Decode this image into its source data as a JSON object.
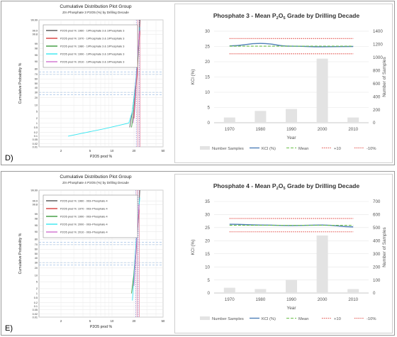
{
  "panels": [
    {
      "letter": "D)",
      "cdf": {
        "title": "Cumulative Distribution Plot Group",
        "subtitle": "Zm Phosphate 3 P2O5 (%) by Drilling Decade",
        "xlabel": "P2O5 prod %",
        "ylabel": "Cumulative Probability %",
        "xticks": [
          "2",
          "5",
          "10",
          "20",
          "50"
        ],
        "yticks": [
          "99.99",
          "99.9",
          "99.8",
          "99",
          "98",
          "95",
          "90",
          "80",
          "70",
          "60",
          "50",
          "40",
          "30",
          "20",
          "10",
          "5",
          "2",
          "1",
          "0.5",
          "0.2",
          "0.1",
          "0.05",
          "0.02",
          "0.01"
        ],
        "legend": [
          {
            "label": "P2O5 prod %: 1960 - 1\\Phosphate 3 & 1\\Phosphate 3",
            "color": "#555555"
          },
          {
            "label": "P2O5 prod %: 1970 - 1\\Phosphate 3 & 1\\Phosphate 3",
            "color": "#d73b3b"
          },
          {
            "label": "P2O5 prod %: 1980 - 1\\Phosphate 3 & 1\\Phosphate 3",
            "color": "#3c9a3c"
          },
          {
            "label": "P2O5 prod %: 1990 - 1\\Phosphate 3 & 1\\Phosphate 3",
            "color": "#37e6f0"
          },
          {
            "label": "P2O5 prod %: 2010 - 1\\Phosphate 3 & 1\\Phosphate 3",
            "color": "#d070d0"
          }
        ]
      },
      "chart_data": {
        "type": "bar",
        "title": "Phosphate 3 - Mean P2O5 Grade by Drilling Decade",
        "xlabel": "Year",
        "ylabel": "KCl (%)",
        "y2label": "Number of Samples",
        "categories": [
          "1970",
          "1980",
          "1990",
          "2000",
          "2010"
        ],
        "ylim": [
          0,
          30
        ],
        "y2lim": [
          0,
          1400
        ],
        "yticks": [
          "0",
          "5",
          "10",
          "15",
          "20",
          "25",
          "30"
        ],
        "y2ticks": [
          "0",
          "200",
          "400",
          "600",
          "800",
          "1000",
          "1200",
          "1400"
        ],
        "series": [
          {
            "name": "Number Samples",
            "type": "bar",
            "axis": "y2",
            "values": [
              80,
              180,
              210,
              980,
              80
            ],
            "color": "#e3e3e3"
          },
          {
            "name": "KCl (%)",
            "type": "line",
            "axis": "y",
            "values": [
              25.2,
              26.0,
              25.1,
              24.9,
              25.0
            ],
            "color": "#4f7fb8"
          },
          {
            "name": "Mean",
            "type": "line",
            "axis": "y",
            "values": [
              25.1,
              25.1,
              25.1,
              25.1,
              25.1
            ],
            "color": "#6abf4b"
          },
          {
            "name": "+10",
            "type": "line",
            "axis": "y",
            "values": [
              27.6,
              27.6,
              27.6,
              27.6,
              27.6
            ],
            "color": "#e0433c"
          },
          {
            "name": "-10%",
            "type": "line",
            "axis": "y",
            "values": [
              22.6,
              22.6,
              22.6,
              22.6,
              22.6
            ],
            "color": "#e0433c"
          }
        ]
      }
    },
    {
      "letter": "E)",
      "cdf": {
        "title": "Cumulative Distribution Plot Group",
        "subtitle": "Zm Phosphate 4 P2O5 (%) by Drilling Decade",
        "xlabel": "P2O5 prod %",
        "ylabel": "Cumulative Probability %",
        "xticks": [
          "2",
          "5",
          "10",
          "20",
          "50"
        ],
        "yticks": [
          "99.99",
          "99.9",
          "99.8",
          "99",
          "98",
          "95",
          "90",
          "80",
          "70",
          "60",
          "50",
          "40",
          "30",
          "20",
          "10",
          "5",
          "2",
          "1",
          "0.5",
          "0.2",
          "0.1",
          "0.05",
          "0.02",
          "0.01"
        ],
        "legend": [
          {
            "label": "P2O5 prod %: 1960 - 093~Phosphate 4",
            "color": "#555555"
          },
          {
            "label": "P2O5 prod %: 1970 - 093~Phosphate 4",
            "color": "#d73b3b"
          },
          {
            "label": "P2O5 prod %: 1990 - 093~Phosphate 4",
            "color": "#3c9a3c"
          },
          {
            "label": "P2O5 prod %: 2000 - 093~Phosphate 4",
            "color": "#37e6f0"
          },
          {
            "label": "P2O5 prod %: 2010 - 093~Phosphate 4",
            "color": "#d070d0"
          }
        ]
      },
      "chart_data": {
        "type": "bar",
        "title": "Phosphate 4 - Mean P2O5 Grade by Drilling Decade",
        "xlabel": "Year",
        "ylabel": "KCl (%)",
        "y2label": "Number of Samples",
        "categories": [
          "1970",
          "1980",
          "1990",
          "2000",
          "2010"
        ],
        "ylim": [
          0,
          35
        ],
        "y2lim": [
          0,
          700
        ],
        "yticks": [
          "0",
          "5",
          "10",
          "15",
          "20",
          "25",
          "30",
          "35"
        ],
        "y2ticks": [
          "0",
          "100",
          "200",
          "300",
          "400",
          "500",
          "600",
          "700"
        ],
        "series": [
          {
            "name": "Number Samples",
            "type": "bar",
            "axis": "y2",
            "values": [
              40,
              30,
              100,
              440,
              30
            ],
            "color": "#e3e3e3"
          },
          {
            "name": "KCl (%)",
            "type": "line",
            "axis": "y",
            "values": [
              26.3,
              26.0,
              25.8,
              26.0,
              25.3
            ],
            "color": "#4f7fb8"
          },
          {
            "name": "Mean",
            "type": "line",
            "axis": "y",
            "values": [
              25.9,
              25.9,
              25.9,
              25.9,
              25.9
            ],
            "color": "#6abf4b"
          },
          {
            "name": "+10",
            "type": "line",
            "axis": "y",
            "values": [
              28.5,
              28.5,
              28.5,
              28.5,
              28.5
            ],
            "color": "#e0433c"
          },
          {
            "name": "-10%",
            "type": "line",
            "axis": "y",
            "values": [
              23.4,
              23.4,
              23.4,
              23.4,
              23.4
            ],
            "color": "#e0433c"
          }
        ]
      }
    }
  ]
}
